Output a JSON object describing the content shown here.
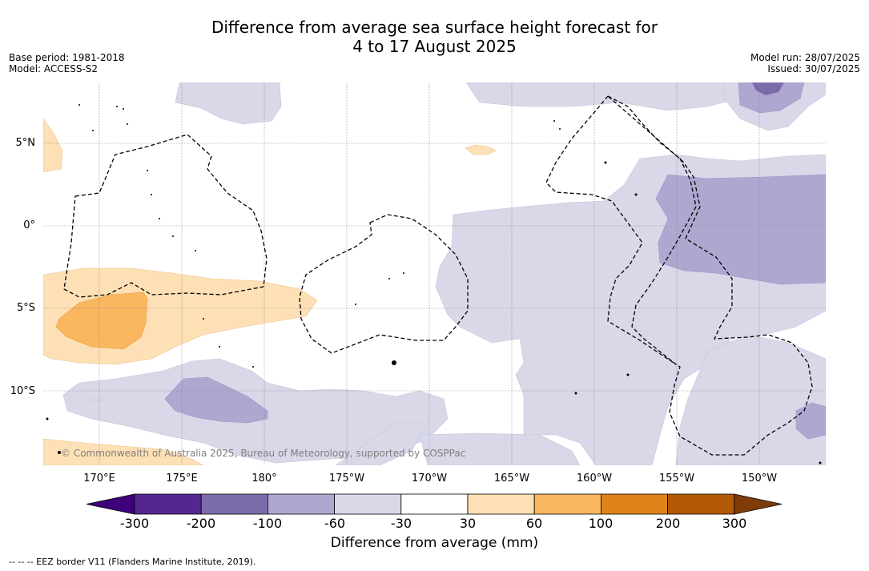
{
  "title": {
    "line1": "Difference from average sea surface height forecast for",
    "line2": "4 to 17 August 2025"
  },
  "meta_left": {
    "base_period": "Base period: 1981-2018",
    "model": "Model: ACCESS-S2"
  },
  "meta_right": {
    "model_run": "Model run: 28/07/2025",
    "issued": "Issued: 30/07/2025"
  },
  "map": {
    "copyright": "© Commonwealth of Australia 2025, Bureau of Meteorology, supported by COSPPac",
    "lat_labels": [
      "5°N",
      "0°",
      "5°S",
      "10°S"
    ],
    "lon_labels": [
      "170°E",
      "175°E",
      "180°",
      "175°W",
      "170°W",
      "165°W",
      "160°W",
      "155°W",
      "150°W"
    ],
    "grid": true
  },
  "colorbar": {
    "title": "Difference from average (mm)",
    "tick_labels": [
      "-300",
      "-200",
      "-100",
      "-60",
      "-30",
      "30",
      "60",
      "100",
      "200",
      "300"
    ],
    "colors": [
      "#3f007d",
      "#54278f",
      "#7b6ca9",
      "#aea8d0",
      "#d8d8e9",
      "#ffffff",
      "#fde0b5",
      "#fbb660",
      "#e08318",
      "#b35806",
      "#7f3b08"
    ]
  },
  "footnote": "--  --  -- EEZ border V11 (Flanders Marine Institute, 2019)."
}
